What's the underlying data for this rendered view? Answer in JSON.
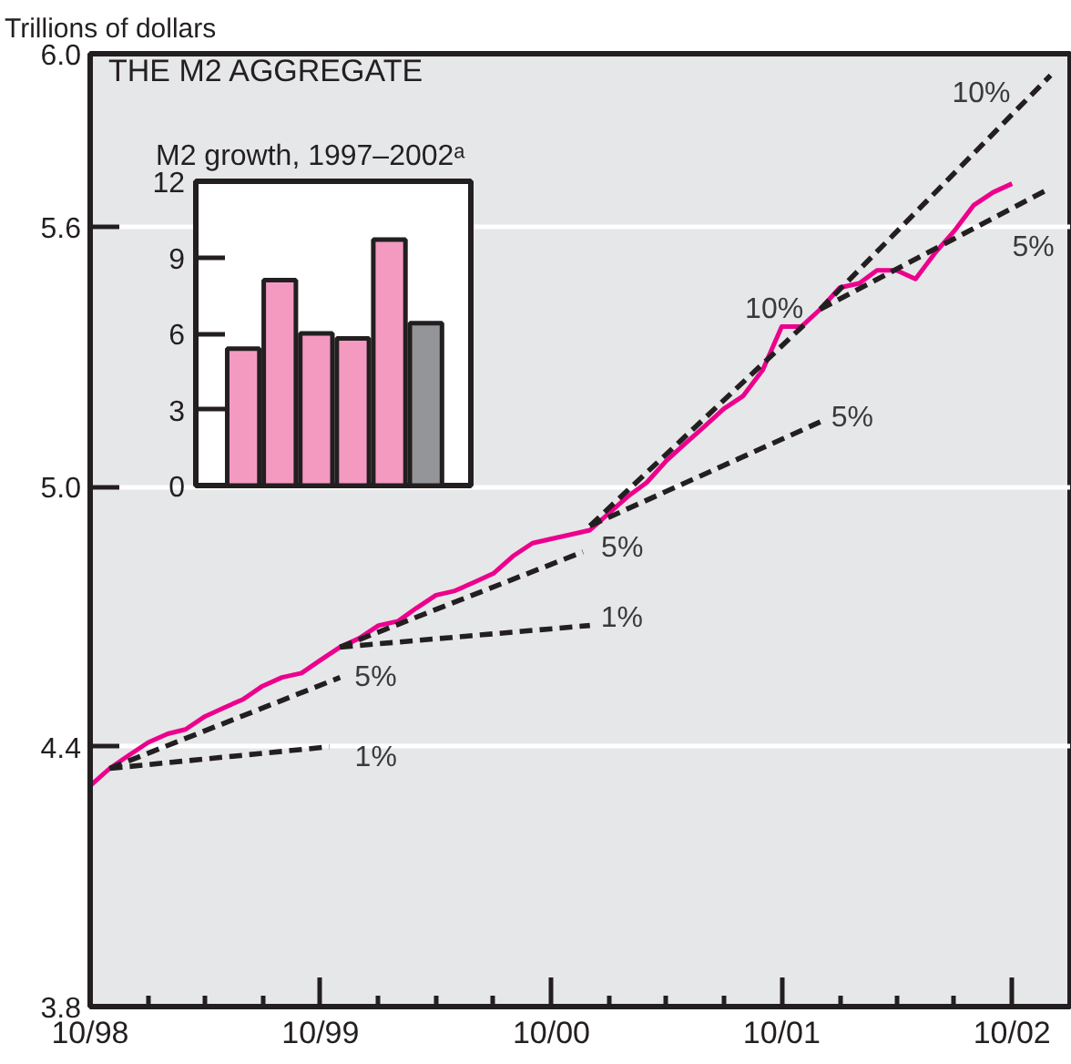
{
  "chart_data": [
    {
      "type": "line",
      "title": "THE M2 AGGREGATE",
      "ylabel": "Trillions of dollars",
      "xlim": [
        "1998-10",
        "2003-01"
      ],
      "xticks": [
        {
          "value": "1998-10",
          "label": "10/98"
        },
        {
          "value": "1999-01",
          "label": null
        },
        {
          "value": "1999-04",
          "label": null
        },
        {
          "value": "1999-07",
          "label": null
        },
        {
          "value": "1999-10",
          "label": "10/99"
        },
        {
          "value": "2000-01",
          "label": null
        },
        {
          "value": "2000-04",
          "label": null
        },
        {
          "value": "2000-07",
          "label": null
        },
        {
          "value": "2000-10",
          "label": "10/00"
        },
        {
          "value": "2001-01",
          "label": null
        },
        {
          "value": "2001-04",
          "label": null
        },
        {
          "value": "2001-07",
          "label": null
        },
        {
          "value": "2001-10",
          "label": "10/01"
        },
        {
          "value": "2002-01",
          "label": null
        },
        {
          "value": "2002-04",
          "label": null
        },
        {
          "value": "2002-07",
          "label": null
        },
        {
          "value": "2002-10",
          "label": "10/02"
        }
      ],
      "ylim": [
        3.8,
        6.0
      ],
      "yticks": [
        {
          "value": 3.8,
          "label": "3.8"
        },
        {
          "value": 4.4,
          "label": "4.4"
        },
        {
          "value": 5.0,
          "label": "5.0"
        },
        {
          "value": 5.6,
          "label": "5.6"
        },
        {
          "value": 6.0,
          "label": "6.0"
        }
      ],
      "grid": "y",
      "series": [
        {
          "color": "#ec008c",
          "x": [
            "1998-10",
            "1998-11",
            "1998-12",
            "1999-01",
            "1999-02",
            "1999-03",
            "1999-04",
            "1999-05",
            "1999-06",
            "1999-07",
            "1999-08",
            "1999-09",
            "1999-10",
            "1999-11",
            "1999-12",
            "2000-01",
            "2000-02",
            "2000-03",
            "2000-04",
            "2000-05",
            "2000-06",
            "2000-07",
            "2000-08",
            "2000-09",
            "2000-10",
            "2000-11",
            "2000-12",
            "2001-01",
            "2001-02",
            "2001-03",
            "2001-04",
            "2001-05",
            "2001-06",
            "2001-07",
            "2001-08",
            "2001-09",
            "2001-10",
            "2001-11",
            "2001-12",
            "2002-01",
            "2002-02",
            "2002-03",
            "2002-04",
            "2002-05",
            "2002-06",
            "2002-07",
            "2002-08",
            "2002-09",
            "2002-10"
          ],
          "values": [
            4.31,
            4.35,
            4.38,
            4.41,
            4.43,
            4.44,
            4.47,
            4.49,
            4.51,
            4.54,
            4.56,
            4.57,
            4.6,
            4.63,
            4.65,
            4.68,
            4.69,
            4.72,
            4.75,
            4.76,
            4.78,
            4.8,
            4.84,
            4.87,
            4.88,
            4.89,
            4.9,
            4.94,
            4.98,
            5.01,
            5.06,
            5.1,
            5.14,
            5.18,
            5.21,
            5.27,
            5.37,
            5.37,
            5.41,
            5.46,
            5.47,
            5.5,
            5.5,
            5.48,
            5.54,
            5.59,
            5.65,
            5.68,
            5.7
          ]
        },
        {
          "type": "line",
          "name": "1%",
          "line_style": "dashed",
          "color": "#231f20",
          "x": [
            "1998-11",
            "1999-10-15"
          ],
          "values": [
            4.35,
            4.4
          ]
        },
        {
          "type": "line",
          "name": "5%",
          "line_style": "dashed",
          "color": "#231f20",
          "x": [
            "1998-11",
            "1999-11"
          ],
          "values": [
            4.35,
            4.56
          ]
        },
        {
          "type": "line",
          "name": "1%",
          "line_style": "dashed",
          "color": "#231f20",
          "x": [
            "1999-11",
            "2000-12"
          ],
          "values": [
            4.63,
            4.68
          ]
        },
        {
          "type": "line",
          "name": "5%",
          "line_style": "dashed",
          "color": "#231f20",
          "x": [
            "1999-11",
            "2000-11-20"
          ],
          "values": [
            4.63,
            4.85
          ]
        },
        {
          "type": "line",
          "name": "5%",
          "line_style": "dashed",
          "color": "#231f20",
          "x": [
            "2000-12",
            "2001-12"
          ],
          "values": [
            4.91,
            5.15
          ]
        },
        {
          "type": "line",
          "name": "10%",
          "line_style": "dashed",
          "color": "#231f20",
          "x": [
            "2000-12",
            "2001-11-10"
          ],
          "values": [
            4.91,
            5.38
          ]
        },
        {
          "type": "line",
          "name": "10%",
          "line_style": "dashed",
          "color": "#231f20",
          "x": [
            "2001-12",
            "2002-12"
          ],
          "values": [
            5.41,
            5.95
          ]
        },
        {
          "type": "line",
          "name": "5%",
          "line_style": "dashed",
          "color": "#231f20",
          "x": [
            "2001-12",
            "2002-12"
          ],
          "values": [
            5.41,
            5.69
          ]
        }
      ]
    },
    {
      "type": "bar",
      "title": "M2 growth, 1997–2002ᵃ",
      "categories": [
        null,
        null,
        null,
        null,
        null,
        null
      ],
      "values": [
        5.4,
        8.1,
        6.0,
        5.8,
        9.7,
        6.4
      ],
      "colors": [
        "#f49ac1",
        "#f49ac1",
        "#f49ac1",
        "#f49ac1",
        "#f49ac1",
        "#939598"
      ],
      "ylim": [
        0,
        12
      ],
      "yticks": [
        0,
        3,
        6,
        9,
        12
      ],
      "tick_labels": "y"
    }
  ]
}
